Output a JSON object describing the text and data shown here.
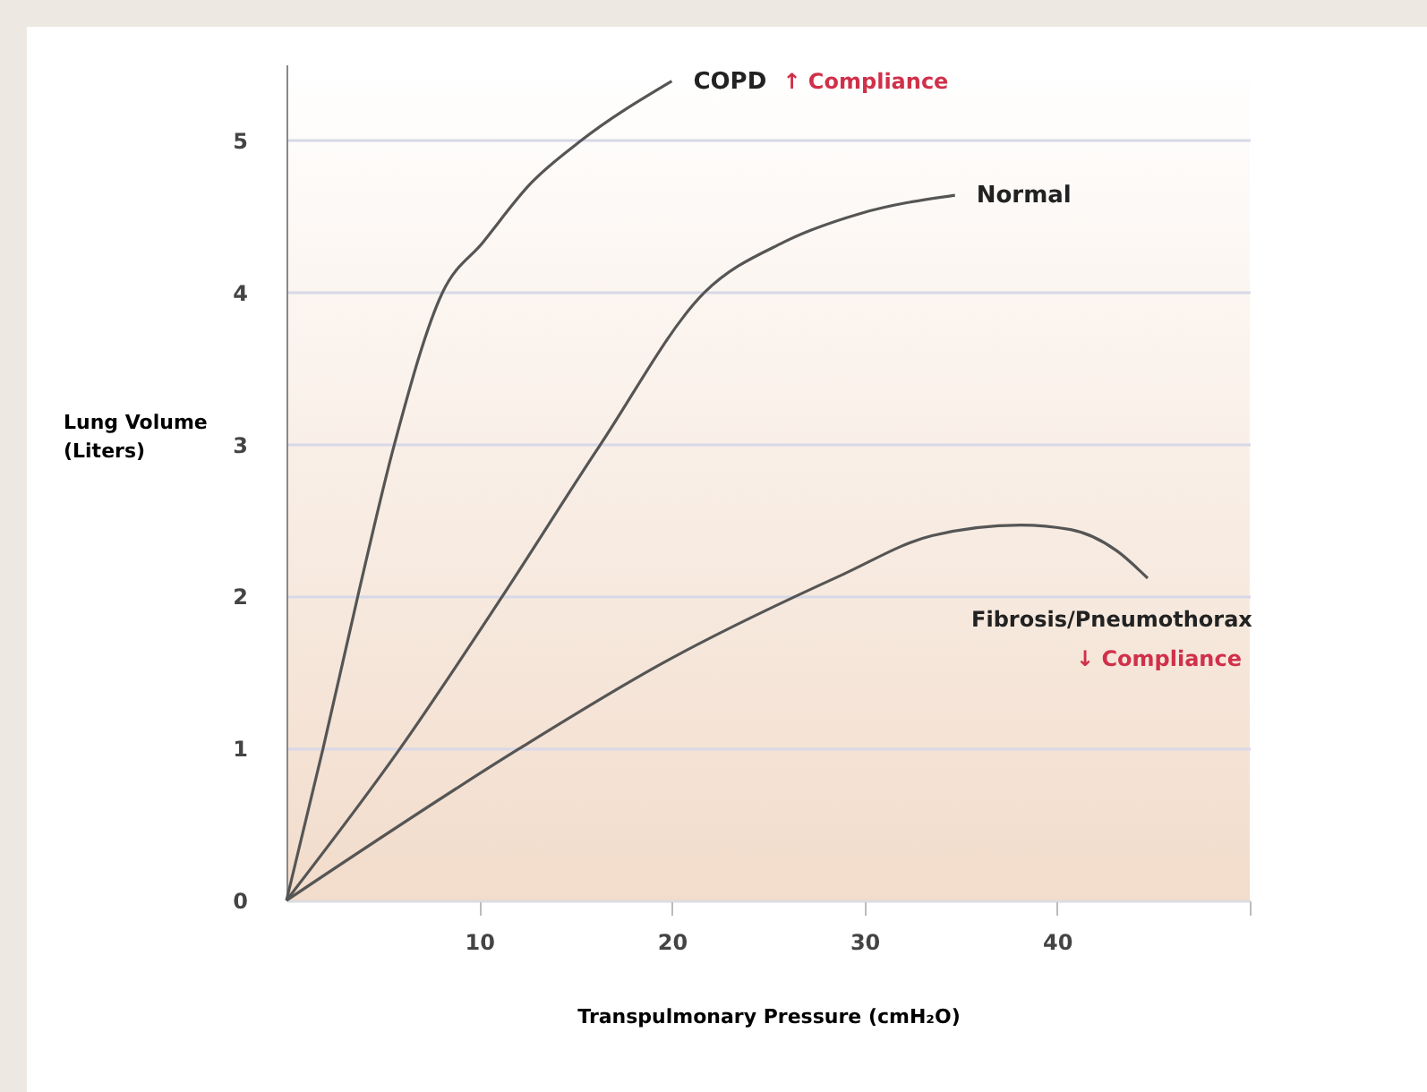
{
  "chart_data": {
    "type": "line",
    "xlabel": "Transpulmonary Pressure  (cmH₂O)",
    "ylabel": "Lung Volume (Liters)",
    "series": [
      {
        "name": "COPD",
        "color": "#555555",
        "x": [
          0,
          1.9,
          3.7,
          5.6,
          8.1,
          10.2,
          12.7,
          15.2,
          20
        ],
        "values": [
          0,
          1,
          2,
          3,
          4,
          4.33,
          4.72,
          4.99,
          5.39
        ]
      },
      {
        "name": "Normal",
        "color": "#555555",
        "x": [
          0,
          5.9,
          11.2,
          16.3,
          21.7,
          25.8,
          29.8,
          34.7
        ],
        "values": [
          0,
          1,
          2,
          3,
          4,
          4.33,
          4.52,
          4.64
        ]
      },
      {
        "name": "Fibrosis/Pneumothorax",
        "color": "#555555",
        "x": [
          0,
          12.1,
          19.5,
          28.8,
          33.5,
          38.1,
          40.7,
          43.1,
          44.7
        ],
        "values": [
          0,
          1,
          1.56,
          2.14,
          2.4,
          2.47,
          2.44,
          2.3,
          2.12
        ]
      }
    ],
    "annotations": [
      "↑ Compliance",
      "↓ Compliance"
    ],
    "xlim": [
      0,
      50
    ],
    "xticks": [
      10,
      20,
      30,
      40,
      {
        "value": 50,
        "label": null
      }
    ],
    "ylim": [
      0,
      5.5
    ],
    "yticks": [
      0,
      1,
      2,
      3,
      4,
      5
    ],
    "grid": "y",
    "legend": false,
    "marker": "none",
    "line_style": "solid"
  }
}
